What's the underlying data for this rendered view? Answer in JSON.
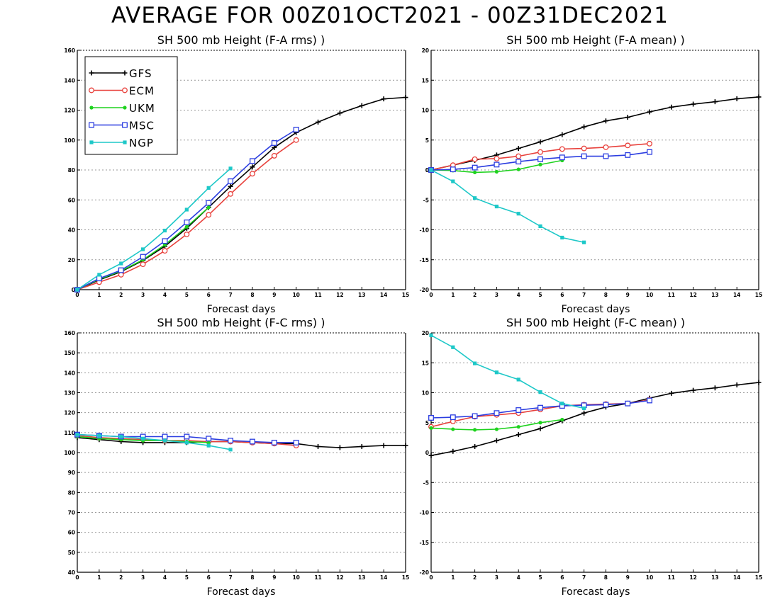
{
  "title": "AVERAGE FOR 00Z01OCT2021 - 00Z31DEC2021",
  "legend": [
    {
      "name": "GFS",
      "color": "#000000",
      "marker": "plus"
    },
    {
      "name": "ECM",
      "color": "#e8413c",
      "marker": "circle"
    },
    {
      "name": "UKM",
      "color": "#1ed21e",
      "marker": "filled-circle"
    },
    {
      "name": "MSC",
      "color": "#2b3de0",
      "marker": "square"
    },
    {
      "name": "NGP",
      "color": "#1ec8c8",
      "marker": "filled-square"
    }
  ],
  "chart_data": [
    {
      "type": "line",
      "title": "SH 500 mb Height (F-A rms) )",
      "xlabel": "Forecast days",
      "ylabel": "",
      "xlim": [
        0,
        15
      ],
      "ylim": [
        0,
        160
      ],
      "xticks": [
        0,
        1,
        2,
        3,
        4,
        5,
        6,
        7,
        8,
        9,
        10,
        11,
        12,
        13,
        14,
        15
      ],
      "yticks": [
        0,
        20,
        40,
        60,
        80,
        100,
        120,
        140,
        160
      ],
      "grid": true,
      "legend_position": "top-left",
      "series": [
        {
          "name": "GFS",
          "x": [
            0,
            1,
            2,
            3,
            4,
            5,
            6,
            7,
            8,
            9,
            10,
            11,
            12,
            13,
            14,
            15
          ],
          "values": [
            0,
            6.5,
            12,
            19.5,
            29,
            41,
            55,
            69,
            82,
            95,
            105,
            112,
            118,
            123,
            127.5,
            128.5
          ]
        },
        {
          "name": "ECM",
          "x": [
            0,
            1,
            2,
            3,
            4,
            5,
            6,
            7,
            8,
            9,
            10
          ],
          "values": [
            0,
            5,
            10,
            17,
            26,
            37,
            50,
            64,
            77.5,
            89.5,
            100
          ]
        },
        {
          "name": "UKM",
          "x": [
            0,
            1,
            2,
            3,
            4,
            5,
            6
          ],
          "values": [
            0,
            7,
            12.5,
            20,
            30,
            42,
            55
          ]
        },
        {
          "name": "MSC",
          "x": [
            0,
            1,
            2,
            3,
            4,
            5,
            6,
            7,
            8,
            9,
            10
          ],
          "values": [
            0,
            7.5,
            13,
            22,
            32.5,
            45,
            58,
            72.5,
            86,
            98,
            107
          ]
        },
        {
          "name": "NGP",
          "x": [
            0,
            1,
            2,
            3,
            4,
            5,
            6,
            7
          ],
          "values": [
            0,
            10,
            17.5,
            27,
            39.5,
            53.5,
            68,
            81
          ]
        }
      ]
    },
    {
      "type": "line",
      "title": "SH 500 mb Height (F-A mean) )",
      "xlabel": "Forecast days",
      "ylabel": "",
      "xlim": [
        0,
        15
      ],
      "ylim": [
        -20,
        20
      ],
      "xticks": [
        0,
        1,
        2,
        3,
        4,
        5,
        6,
        7,
        8,
        9,
        10,
        11,
        12,
        13,
        14,
        15
      ],
      "yticks": [
        -20,
        -15,
        -10,
        -5,
        0,
        5,
        10,
        15,
        20
      ],
      "grid": true,
      "series": [
        {
          "name": "GFS",
          "x": [
            0,
            1,
            2,
            3,
            4,
            5,
            6,
            7,
            8,
            9,
            10,
            11,
            12,
            13,
            14,
            15
          ],
          "values": [
            0,
            0.8,
            1.6,
            2.5,
            3.6,
            4.7,
            5.9,
            7.2,
            8.2,
            8.8,
            9.7,
            10.5,
            11,
            11.4,
            11.9,
            12.2
          ]
        },
        {
          "name": "ECM",
          "x": [
            0,
            1,
            2,
            3,
            4,
            5,
            6,
            7,
            8,
            9,
            10
          ],
          "values": [
            0,
            0.8,
            1.8,
            1.9,
            2.3,
            3,
            3.5,
            3.6,
            3.8,
            4.1,
            4.4
          ]
        },
        {
          "name": "UKM",
          "x": [
            0,
            1,
            2,
            3,
            4,
            5,
            6
          ],
          "values": [
            0,
            -0.1,
            -0.4,
            -0.3,
            0.1,
            0.9,
            1.6
          ]
        },
        {
          "name": "MSC",
          "x": [
            0,
            1,
            2,
            3,
            4,
            5,
            6,
            7,
            8,
            9,
            10
          ],
          "values": [
            0,
            0.1,
            0.4,
            0.9,
            1.4,
            1.8,
            2.1,
            2.3,
            2.3,
            2.5,
            3
          ]
        },
        {
          "name": "NGP",
          "x": [
            0,
            1,
            2,
            3,
            4,
            5,
            6,
            7
          ],
          "values": [
            0,
            -1.9,
            -4.7,
            -6.1,
            -7.3,
            -9.4,
            -11.3,
            -12.1
          ]
        }
      ]
    },
    {
      "type": "line",
      "title": "SH 500 mb Height (F-C rms) )",
      "xlabel": "Forecast days",
      "ylabel": "",
      "xlim": [
        0,
        15
      ],
      "ylim": [
        40,
        160
      ],
      "xticks": [
        0,
        1,
        2,
        3,
        4,
        5,
        6,
        7,
        8,
        9,
        10,
        11,
        12,
        13,
        14,
        15
      ],
      "yticks": [
        40,
        50,
        60,
        70,
        80,
        90,
        100,
        110,
        120,
        130,
        140,
        150,
        160
      ],
      "grid": true,
      "series": [
        {
          "name": "GFS",
          "x": [
            0,
            1,
            2,
            3,
            4,
            5,
            6,
            7,
            8,
            9,
            10,
            11,
            12,
            13,
            14,
            15
          ],
          "values": [
            107.5,
            106.5,
            105.5,
            105,
            105,
            105,
            105.5,
            105.5,
            105,
            104.5,
            104.5,
            103,
            102.5,
            103,
            103.5,
            103.5
          ]
        },
        {
          "name": "ECM",
          "x": [
            0,
            1,
            2,
            3,
            4,
            5,
            6,
            7,
            8,
            9,
            10
          ],
          "values": [
            108.5,
            107.5,
            107,
            106.5,
            106,
            106,
            105.5,
            105.5,
            105,
            104.5,
            103.5
          ]
        },
        {
          "name": "UKM",
          "x": [
            0,
            1,
            2,
            3,
            4,
            5,
            6
          ],
          "values": [
            108,
            107,
            106.5,
            106,
            106,
            105.5,
            105
          ]
        },
        {
          "name": "MSC",
          "x": [
            0,
            1,
            2,
            3,
            4,
            5,
            6,
            7,
            8,
            9,
            10
          ],
          "values": [
            109,
            108.5,
            108,
            108,
            108,
            108,
            107,
            106,
            105.5,
            105,
            105
          ]
        },
        {
          "name": "NGP",
          "x": [
            0,
            1,
            2,
            3,
            4,
            5,
            6,
            7
          ],
          "values": [
            109,
            108.5,
            108,
            107,
            106,
            105,
            103.5,
            101.5
          ]
        }
      ]
    },
    {
      "type": "line",
      "title": "SH 500 mb Height (F-C mean) )",
      "xlabel": "Forecast days",
      "ylabel": "",
      "xlim": [
        0,
        15
      ],
      "ylim": [
        -20,
        20
      ],
      "xticks": [
        0,
        1,
        2,
        3,
        4,
        5,
        6,
        7,
        8,
        9,
        10,
        11,
        12,
        13,
        14,
        15
      ],
      "yticks": [
        -20,
        -15,
        -10,
        -5,
        0,
        5,
        10,
        15,
        20
      ],
      "grid": true,
      "series": [
        {
          "name": "GFS",
          "x": [
            0,
            1,
            2,
            3,
            4,
            5,
            6,
            7,
            8,
            9,
            10,
            11,
            12,
            13,
            14,
            15
          ],
          "values": [
            -0.5,
            0.2,
            1,
            2,
            3,
            4,
            5.3,
            6.6,
            7.6,
            8.2,
            9.1,
            9.9,
            10.4,
            10.8,
            11.3,
            11.7
          ]
        },
        {
          "name": "ECM",
          "x": [
            0,
            1,
            2,
            3,
            4,
            5,
            6,
            7,
            8,
            9,
            10
          ],
          "values": [
            4.3,
            5.2,
            6,
            6.3,
            6.6,
            7.2,
            7.8,
            8,
            8.1,
            8.2,
            8.8
          ]
        },
        {
          "name": "UKM",
          "x": [
            0,
            1,
            2,
            3,
            4,
            5,
            6
          ],
          "values": [
            4.1,
            3.9,
            3.8,
            3.9,
            4.3,
            5,
            5.5
          ]
        },
        {
          "name": "MSC",
          "x": [
            0,
            1,
            2,
            3,
            4,
            5,
            6,
            7,
            8,
            9,
            10
          ],
          "values": [
            5.8,
            5.9,
            6.1,
            6.6,
            7.1,
            7.5,
            7.8,
            7.9,
            8,
            8.2,
            8.7
          ]
        },
        {
          "name": "NGP",
          "x": [
            0,
            1,
            2,
            3,
            4,
            5,
            6,
            7
          ],
          "values": [
            19.6,
            17.6,
            14.9,
            13.4,
            12.2,
            10.1,
            8.2,
            7.4
          ]
        }
      ]
    }
  ]
}
